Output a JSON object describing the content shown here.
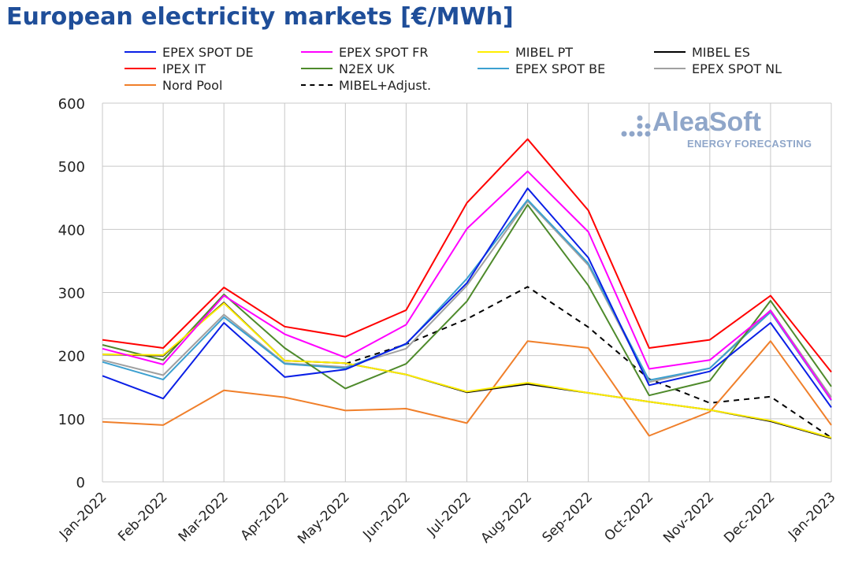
{
  "title": "European electricity markets [€/MWh]",
  "logo": {
    "name": "AleaSoft",
    "tagline": "ENERGY FORECASTING"
  },
  "chart_data": {
    "type": "line",
    "title": "European electricity markets [€/MWh]",
    "xlabel": "",
    "ylabel": "",
    "ylim": [
      0,
      600
    ],
    "yticks": [
      0,
      100,
      200,
      300,
      400,
      500,
      600
    ],
    "grid": true,
    "legend": "top",
    "categories": [
      "Jan-2022",
      "Feb-2022",
      "Mar-2022",
      "Apr-2022",
      "May-2022",
      "Jun-2022",
      "Jul-2022",
      "Aug-2022",
      "Sep-2022",
      "Oct-2022",
      "Nov-2022",
      "Dec-2022",
      "Jan-2023"
    ],
    "series": [
      {
        "name": "EPEX SPOT DE",
        "color": "#0a1fe6",
        "dash": false,
        "values": [
          168,
          132,
          252,
          166,
          178,
          219,
          315,
          465,
          355,
          153,
          175,
          252,
          118
        ]
      },
      {
        "name": "EPEX SPOT FR",
        "color": "#ff00ff",
        "dash": false,
        "values": [
          211,
          186,
          295,
          234,
          197,
          249,
          401,
          492,
          396,
          179,
          193,
          271,
          130
        ]
      },
      {
        "name": "MIBEL PT",
        "color": "#ffee00",
        "dash": false,
        "values": [
          202,
          201,
          283,
          192,
          188,
          170,
          143,
          157,
          141,
          127,
          114,
          97,
          70
        ]
      },
      {
        "name": "MIBEL ES",
        "color": "#000000",
        "dash": false,
        "values": [
          202,
          200,
          284,
          192,
          188,
          170,
          142,
          155,
          141,
          127,
          114,
          96,
          69
        ]
      },
      {
        "name": "IPEX IT",
        "color": "#ff0000",
        "dash": false,
        "values": [
          225,
          212,
          308,
          246,
          230,
          272,
          442,
          543,
          430,
          212,
          225,
          295,
          174
        ]
      },
      {
        "name": "N2EX UK",
        "color": "#4e8a2b",
        "dash": false,
        "values": [
          217,
          193,
          297,
          212,
          148,
          187,
          286,
          439,
          311,
          137,
          160,
          287,
          151
        ]
      },
      {
        "name": "EPEX SPOT BE",
        "color": "#3ca0d0",
        "dash": false,
        "values": [
          190,
          162,
          261,
          187,
          180,
          218,
          322,
          447,
          346,
          161,
          180,
          269,
          129
        ]
      },
      {
        "name": "EPEX SPOT NL",
        "color": "#a0a0a0",
        "dash": false,
        "values": [
          193,
          169,
          265,
          188,
          182,
          211,
          311,
          445,
          343,
          158,
          180,
          272,
          134
        ]
      },
      {
        "name": "Nord Pool",
        "color": "#f07f2a",
        "dash": false,
        "values": [
          95,
          90,
          145,
          134,
          113,
          116,
          93,
          223,
          212,
          73,
          111,
          223,
          90
        ]
      },
      {
        "name": "MIBEL+Adjust.",
        "color": "#000000",
        "dash": true,
        "values": [
          null,
          null,
          null,
          null,
          187,
          218,
          258,
          309,
          245,
          163,
          125,
          135,
          70
        ]
      }
    ]
  }
}
